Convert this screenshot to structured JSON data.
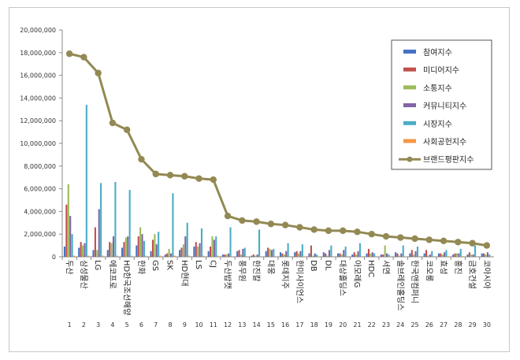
{
  "chart_data": {
    "type": "bar",
    "title": "",
    "xlabel": "",
    "ylabel": "",
    "ylim": [
      0,
      20000000
    ],
    "yticks": [
      "0",
      "2,000,000",
      "4,000,000",
      "6,000,000",
      "8,000,000",
      "10,000,000",
      "12,000,000",
      "14,000,000",
      "16,000,000",
      "18,000,000",
      "20,000,000"
    ],
    "ranks": [
      "1",
      "2",
      "3",
      "4",
      "5",
      "6",
      "7",
      "8",
      "9",
      "10",
      "11",
      "12",
      "13",
      "14",
      "15",
      "16",
      "17",
      "18",
      "19",
      "20",
      "21",
      "22",
      "23",
      "24",
      "25",
      "26",
      "27",
      "28",
      "29",
      "30"
    ],
    "categories": [
      "두산",
      "삼성물산",
      "LG",
      "에코프로",
      "HD한국조선해양",
      "한화",
      "GS",
      "SK",
      "HD현대",
      "LS",
      "CJ",
      "두산밥캣",
      "풍무원",
      "한진칼",
      "대웅",
      "롯데지주",
      "한미사이언스",
      "DB",
      "DL",
      "대상홀딩스",
      "아모레G",
      "HDC",
      "서연",
      "솔브레인홀딩스",
      "한국앤컴퍼니",
      "코오롱",
      "효성",
      "홍진",
      "금호건설",
      "코아시아"
    ],
    "series": [
      {
        "name": "참여지수",
        "color": "#4472c4",
        "type": "bar",
        "values": [
          900000,
          800000,
          600000,
          600000,
          800000,
          1000000,
          500000,
          200000,
          600000,
          900000,
          500000,
          200000,
          500000,
          100000,
          500000,
          400000,
          400000,
          300000,
          400000,
          300000,
          200000,
          300000,
          200000,
          400000,
          300000,
          300000,
          300000,
          200000,
          200000,
          300000
        ]
      },
      {
        "name": "미디어지수",
        "color": "#c0504d",
        "type": "bar",
        "values": [
          4600000,
          1300000,
          2600000,
          1300000,
          1300000,
          1800000,
          1500000,
          300000,
          800000,
          1300000,
          900000,
          200000,
          600000,
          200000,
          800000,
          300000,
          500000,
          1000000,
          300000,
          300000,
          400000,
          700000,
          200000,
          300000,
          600000,
          600000,
          300000,
          300000,
          400000,
          300000
        ]
      },
      {
        "name": "소통지수",
        "color": "#9bbb59",
        "type": "bar",
        "values": [
          6400000,
          1000000,
          600000,
          1200000,
          1700000,
          2600000,
          2000000,
          700000,
          1100000,
          900000,
          1800000,
          200000,
          200000,
          100000,
          700000,
          200000,
          300000,
          100000,
          100000,
          200000,
          200000,
          300000,
          1000000,
          100000,
          200000,
          100000,
          200000,
          300000,
          200000,
          200000
        ]
      },
      {
        "name": "커뮤니티지수",
        "color": "#8064a2",
        "type": "bar",
        "values": [
          3600000,
          1200000,
          4200000,
          1800000,
          1800000,
          2000000,
          1100000,
          300000,
          1800000,
          1200000,
          1500000,
          300000,
          700000,
          200000,
          600000,
          500000,
          500000,
          300000,
          600000,
          600000,
          500000,
          400000,
          300000,
          300000,
          500000,
          200000,
          400000,
          300000,
          200000,
          400000
        ]
      },
      {
        "name": "시장지수",
        "color": "#4bacc6",
        "type": "bar",
        "values": [
          2000000,
          13400000,
          6500000,
          6600000,
          5900000,
          1400000,
          2200000,
          5600000,
          3000000,
          2500000,
          1800000,
          2600000,
          800000,
          2400000,
          700000,
          1200000,
          1100000,
          200000,
          1000000,
          900000,
          1200000,
          300000,
          200000,
          1000000,
          900000,
          500000,
          600000,
          700000,
          1000000,
          200000
        ]
      },
      {
        "name": "사회공헌지수",
        "color": "#f79646",
        "type": "bar",
        "values": [
          100000,
          100000,
          100000,
          100000,
          100000,
          100000,
          100000,
          100000,
          100000,
          100000,
          100000,
          50000,
          50000,
          50000,
          50000,
          50000,
          50000,
          50000,
          50000,
          50000,
          50000,
          50000,
          50000,
          50000,
          50000,
          50000,
          50000,
          50000,
          50000,
          50000
        ]
      },
      {
        "name": "브랜드평판지수",
        "color": "#938953",
        "type": "line",
        "values": [
          17900000,
          17600000,
          16200000,
          11800000,
          11200000,
          8600000,
          7300000,
          7200000,
          7100000,
          6900000,
          6800000,
          3600000,
          3200000,
          3100000,
          2900000,
          2800000,
          2600000,
          2400000,
          2300000,
          2300000,
          2200000,
          2000000,
          1800000,
          1700000,
          1600000,
          1500000,
          1400000,
          1300000,
          1200000,
          1000000
        ]
      }
    ],
    "legend": "top-right",
    "grid": false
  }
}
